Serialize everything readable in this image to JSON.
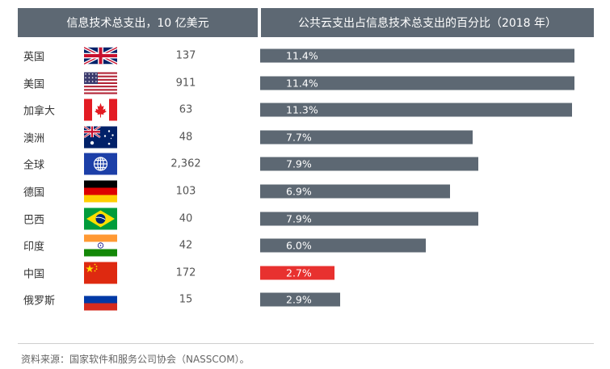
{
  "header": {
    "left": "信息技术总支出，10 亿美元",
    "right": "公共云支出占信息技术总支出的百分比（2018 年）"
  },
  "chart_data": {
    "type": "bar",
    "orientation": "horizontal",
    "categories": [
      "英国",
      "美国",
      "加拿大",
      "澳洲",
      "全球",
      "德国",
      "巴西",
      "印度",
      "中国",
      "俄罗斯"
    ],
    "it_spending_billion_usd": [
      "137",
      "911",
      "63",
      "48",
      "2,362",
      "103",
      "40",
      "42",
      "172",
      "15"
    ],
    "values": [
      11.4,
      11.4,
      11.3,
      7.7,
      7.9,
      6.9,
      7.9,
      6.0,
      2.7,
      2.9
    ],
    "value_labels": [
      "11.4%",
      "11.4%",
      "11.3%",
      "7.7%",
      "7.9%",
      "6.9%",
      "7.9%",
      "6.0%",
      "2.7%",
      "2.9%"
    ],
    "highlight_category": "中国",
    "colors": {
      "bar": "#5d6873",
      "highlight": "#e8312f",
      "header": "#5d6873"
    },
    "xlim": [
      0,
      11.4
    ]
  },
  "flags": [
    "uk-flag-icon",
    "us-flag-icon",
    "canada-flag-icon",
    "australia-flag-icon",
    "globe-icon",
    "germany-flag-icon",
    "brazil-flag-icon",
    "india-flag-icon",
    "china-flag-icon",
    "russia-flag-icon"
  ],
  "footer": {
    "source": "资料来源：国家软件和服务公司协会（NASSCOM）。"
  }
}
